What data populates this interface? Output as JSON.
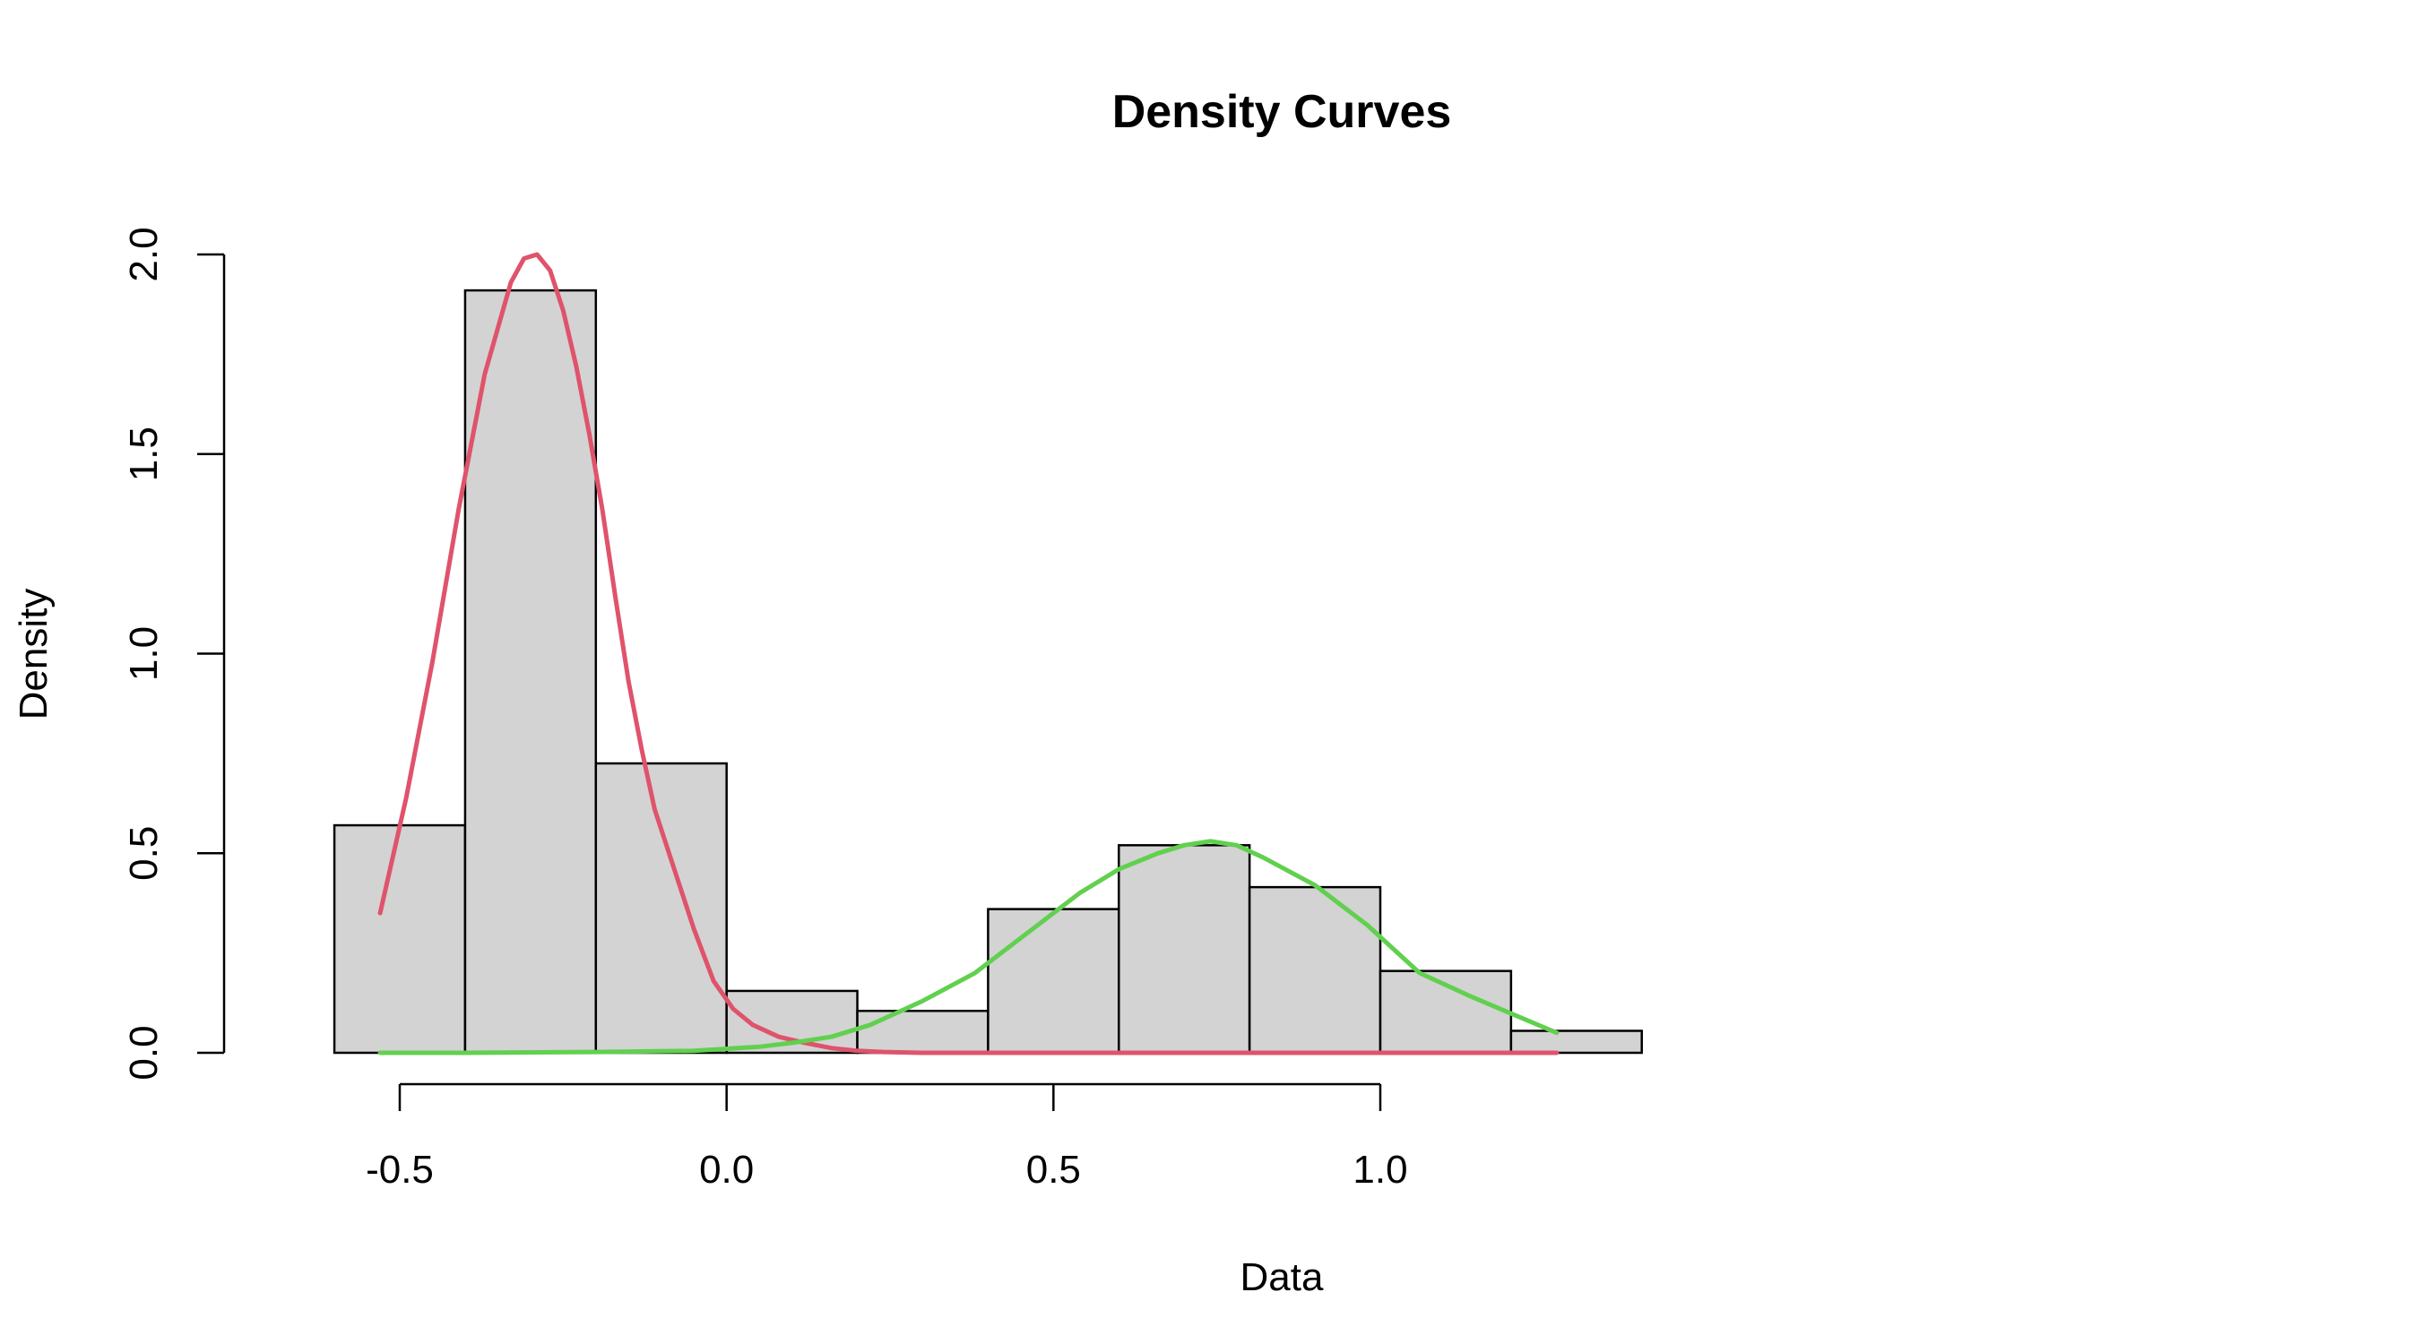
{
  "chart_data": {
    "type": "histogram",
    "title": "Density Curves",
    "xlabel": "Data",
    "ylabel": "Density",
    "xlim": [
      -0.6,
      1.4
    ],
    "ylim": [
      0,
      2.0
    ],
    "xticks": [
      -0.5,
      0.0,
      0.5,
      1.0
    ],
    "xtick_labels": [
      "-0.5",
      "0.0",
      "0.5",
      "1.0"
    ],
    "yticks": [
      0.0,
      0.5,
      1.0,
      1.5,
      2.0
    ],
    "ytick_labels": [
      "0.0",
      "0.5",
      "1.0",
      "1.5",
      "2.0"
    ],
    "bin_edges": [
      -0.6,
      -0.4,
      -0.2,
      0.0,
      0.2,
      0.4,
      0.6,
      0.8,
      1.0,
      1.2,
      1.4
    ],
    "bin_values": [
      0.57,
      1.91,
      0.725,
      0.155,
      0.105,
      0.36,
      0.52,
      0.415,
      0.205,
      0.055
    ],
    "bar_fill": "#d3d3d3",
    "bar_stroke": "#000000",
    "series": [
      {
        "color": "#df536b",
        "x": [
          -0.53,
          -0.49,
          -0.45,
          -0.41,
          -0.37,
          -0.33,
          -0.31,
          -0.29,
          -0.27,
          -0.25,
          -0.23,
          -0.21,
          -0.19,
          -0.17,
          -0.15,
          -0.13,
          -0.11,
          -0.08,
          -0.05,
          -0.02,
          0.01,
          0.04,
          0.08,
          0.12,
          0.16,
          0.2,
          0.24,
          0.3,
          0.4,
          0.6,
          0.8,
          1.0,
          1.27
        ],
        "y": [
          0.35,
          0.64,
          0.98,
          1.36,
          1.7,
          1.93,
          1.99,
          2.0,
          1.96,
          1.86,
          1.72,
          1.55,
          1.36,
          1.14,
          0.93,
          0.76,
          0.61,
          0.46,
          0.31,
          0.18,
          0.11,
          0.07,
          0.04,
          0.025,
          0.012,
          0.005,
          0.002,
          0.0,
          0.0,
          0.0,
          0.0,
          0.0,
          0.0
        ]
      },
      {
        "color": "#61d04f",
        "x": [
          -0.53,
          -0.4,
          -0.2,
          -0.05,
          0.05,
          0.1,
          0.16,
          0.22,
          0.3,
          0.38,
          0.46,
          0.54,
          0.6,
          0.66,
          0.7,
          0.74,
          0.78,
          0.82,
          0.9,
          0.98,
          1.06,
          1.14,
          1.27
        ],
        "y": [
          0.0,
          0.0,
          0.002,
          0.005,
          0.015,
          0.025,
          0.04,
          0.07,
          0.13,
          0.2,
          0.3,
          0.4,
          0.46,
          0.5,
          0.52,
          0.53,
          0.52,
          0.49,
          0.42,
          0.32,
          0.2,
          0.14,
          0.05
        ]
      }
    ]
  }
}
